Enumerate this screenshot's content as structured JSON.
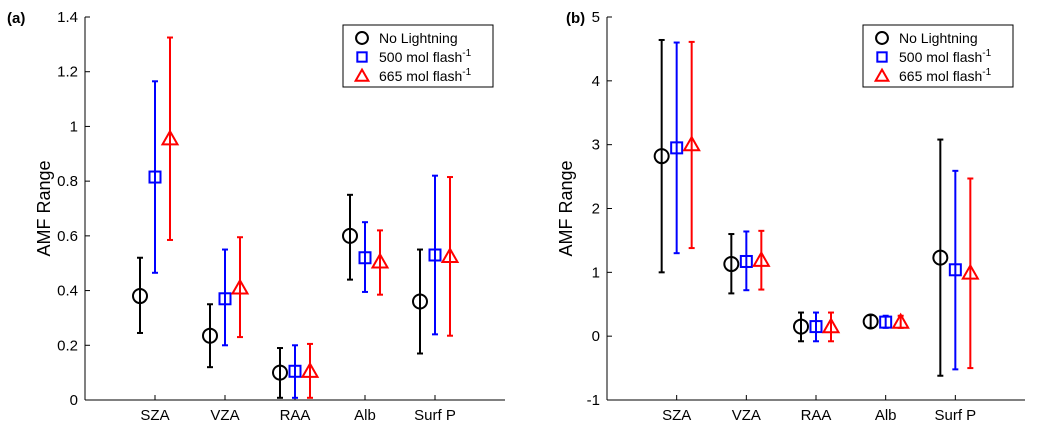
{
  "chart_data": [
    {
      "type": "scatter",
      "panel_label": "(a)",
      "ylabel": "AMF Range",
      "xlabel": "",
      "categories": [
        "SZA",
        "VZA",
        "RAA",
        "Alb",
        "Surf P"
      ],
      "ylim": [
        0,
        1.4
      ],
      "yticks": [
        "0",
        "0.2",
        "0.4",
        "0.6",
        "0.8",
        "1",
        "1.2",
        "1.4"
      ],
      "grid": false,
      "legend_position": "top-right",
      "series": [
        {
          "name": "No Lightning",
          "legend_sup": "",
          "marker": "circle",
          "color": "#000000",
          "values": [
            0.38,
            0.235,
            0.1,
            0.6,
            0.36
          ],
          "lower": [
            0.245,
            0.12,
            0.008,
            0.44,
            0.17
          ],
          "upper": [
            0.52,
            0.35,
            0.19,
            0.75,
            0.55
          ]
        },
        {
          "name": "500 mol flash",
          "legend_sup": "-1",
          "marker": "square",
          "color": "#0000ff",
          "values": [
            0.815,
            0.37,
            0.105,
            0.52,
            0.53
          ],
          "lower": [
            0.465,
            0.2,
            0.008,
            0.395,
            0.24
          ],
          "upper": [
            1.165,
            0.55,
            0.2,
            0.65,
            0.82
          ]
        },
        {
          "name": "665 mol flash",
          "legend_sup": "-1",
          "marker": "triangle",
          "color": "#ff0000",
          "values": [
            0.955,
            0.41,
            0.105,
            0.505,
            0.525
          ],
          "lower": [
            0.585,
            0.23,
            0.008,
            0.385,
            0.235
          ],
          "upper": [
            1.325,
            0.595,
            0.205,
            0.62,
            0.815
          ]
        }
      ]
    },
    {
      "type": "scatter",
      "panel_label": "(b)",
      "ylabel": "AMF Range",
      "xlabel": "",
      "categories": [
        "SZA",
        "VZA",
        "RAA",
        "Alb",
        "Surf P"
      ],
      "ylim": [
        -1,
        5
      ],
      "yticks": [
        "-1",
        "0",
        "1",
        "2",
        "3",
        "4",
        "5"
      ],
      "grid": false,
      "legend_position": "top-right",
      "series": [
        {
          "name": "No Lightning",
          "legend_sup": "",
          "marker": "circle",
          "color": "#000000",
          "values": [
            2.82,
            1.13,
            0.15,
            0.23,
            1.23
          ],
          "lower": [
            1.0,
            0.67,
            -0.08,
            0.13,
            -0.62
          ],
          "upper": [
            4.64,
            1.6,
            0.37,
            0.33,
            3.08
          ]
        },
        {
          "name": "500 mol flash",
          "legend_sup": "-1",
          "marker": "square",
          "color": "#0000ff",
          "values": [
            2.95,
            1.17,
            0.15,
            0.22,
            1.04
          ],
          "lower": [
            1.3,
            0.72,
            -0.08,
            0.13,
            -0.52
          ],
          "upper": [
            4.6,
            1.64,
            0.37,
            0.32,
            2.59
          ]
        },
        {
          "name": "665 mol flash",
          "legend_sup": "-1",
          "marker": "triangle",
          "color": "#ff0000",
          "values": [
            3.0,
            1.19,
            0.15,
            0.22,
            0.99
          ],
          "lower": [
            1.38,
            0.73,
            -0.08,
            0.13,
            -0.5
          ],
          "upper": [
            4.61,
            1.65,
            0.37,
            0.32,
            2.47
          ]
        }
      ]
    }
  ]
}
